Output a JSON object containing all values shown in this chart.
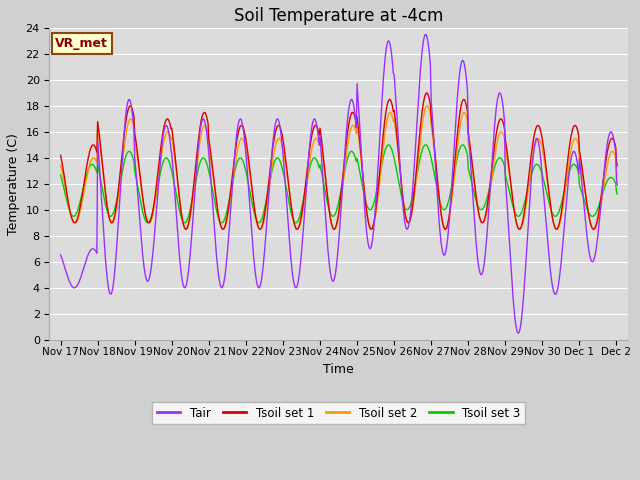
{
  "title": "Soil Temperature at -4cm",
  "xlabel": "Time",
  "ylabel": "Temperature (C)",
  "ylim": [
    0,
    24
  ],
  "x_tick_labels": [
    "Nov 17",
    "Nov 18",
    "Nov 19",
    "Nov 20",
    "Nov 21",
    "Nov 22",
    "Nov 23",
    "Nov 24",
    "Nov 25",
    "Nov 26",
    "Nov 27",
    "Nov 28",
    "Nov 29",
    "Nov 30",
    "Dec 1",
    "Dec 2"
  ],
  "x_tick_positions": [
    0,
    1,
    2,
    3,
    4,
    5,
    6,
    7,
    8,
    9,
    10,
    11,
    12,
    13,
    14,
    15
  ],
  "annotation_text": "VR_met",
  "legend_labels": [
    "Tair",
    "Tsoil set 1",
    "Tsoil set 2",
    "Tsoil set 3"
  ],
  "colors": {
    "Tair": "#9b30ff",
    "Tsoil_1": "#dd0000",
    "Tsoil_2": "#ff9900",
    "Tsoil_3": "#00cc00"
  },
  "fig_bg": "#d0d0d0",
  "ax_bg": "#dcdcdc",
  "title_fontsize": 12,
  "axis_fontsize": 9,
  "tick_fontsize": 8
}
